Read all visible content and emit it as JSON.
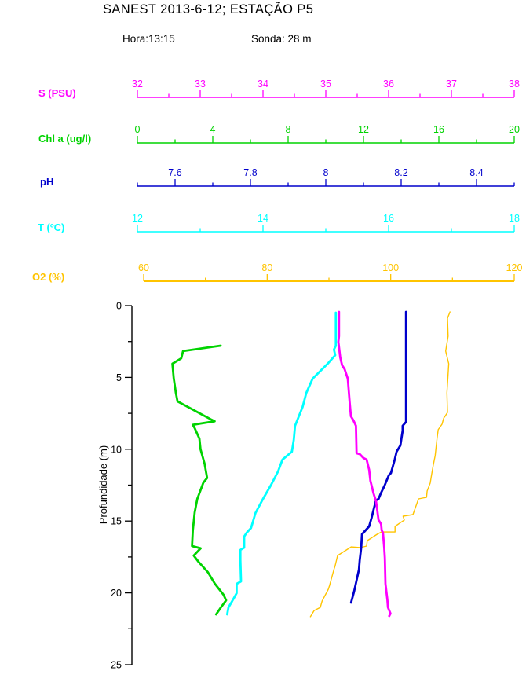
{
  "title": "SANEST 2013-6-12; ESTAÇÃO P5",
  "subtitle": {
    "hora": "Hora:13:15",
    "sonda": "Sonda: 28 m"
  },
  "colors": {
    "salinity": "#FF00FF",
    "chlorophyll": "#00D300",
    "ph": "#0000CC",
    "temperature": "#00FFFF",
    "oxygen": "#FFC400",
    "axis": "#000000"
  },
  "chart_data": {
    "type": "line",
    "title": "SANEST 2013-6-12; ESTAÇÃO P5",
    "subtitle_left": "Hora:13:15",
    "subtitle_right": "Sonda: 28 m",
    "orientation": "vertical-depth-profile",
    "grid": false,
    "legend": "none",
    "y_axis": {
      "label": "Profundidade (m)",
      "min": 0,
      "max": 25,
      "major_ticks": [
        0,
        5,
        10,
        15,
        20,
        25
      ],
      "minor_ticks": [
        2.5,
        7.5,
        12.5,
        17.5,
        22.5
      ]
    },
    "x_axes": [
      {
        "id": "s",
        "label": "S (PSU)",
        "color": "#FF00FF",
        "min": 32,
        "max": 38,
        "major_ticks": [
          32,
          33,
          34,
          35,
          36,
          37,
          38
        ],
        "tick_labels": [
          "32",
          "33",
          "34",
          "35",
          "36",
          "37",
          "38"
        ],
        "minor_ticks": [
          32.5,
          33.5,
          34.5,
          35.5,
          36.5,
          37.5
        ]
      },
      {
        "id": "chl",
        "label": "Chl a (ug/l)",
        "color": "#00D300",
        "min": 0,
        "max": 20,
        "major_ticks": [
          0,
          4,
          8,
          12,
          16,
          20
        ],
        "tick_labels": [
          "0",
          "4",
          "8",
          "12",
          "16",
          "20"
        ],
        "minor_ticks": [
          2,
          6,
          10,
          14,
          18
        ]
      },
      {
        "id": "ph",
        "label": "pH",
        "color": "#0000CC",
        "min": 7.5,
        "max": 8.5,
        "major_ticks": [
          7.6,
          7.8,
          8,
          8.2,
          8.4
        ],
        "tick_labels": [
          "7.6",
          "7.8",
          "8",
          "8.2",
          "8.4"
        ],
        "minor_ticks": [
          7.5,
          7.7,
          7.9,
          8.1,
          8.3,
          8.5
        ]
      },
      {
        "id": "t",
        "label": "T (ºC)",
        "color": "#00FFFF",
        "min": 12,
        "max": 18,
        "major_ticks": [
          12,
          14,
          16,
          18
        ],
        "tick_labels": [
          "12",
          "14",
          "16",
          "18"
        ],
        "minor_ticks": [
          13,
          15,
          17
        ]
      },
      {
        "id": "o2",
        "label": "O2 (%)",
        "color": "#FFC400",
        "min": 60,
        "max": 120,
        "major_ticks": [
          60,
          80,
          100,
          120
        ],
        "tick_labels": [
          "60",
          "80",
          "100",
          "120"
        ],
        "minor_ticks": [
          70,
          90,
          110
        ]
      }
    ],
    "point_format": [
      "value",
      "depth_m"
    ],
    "series": [
      {
        "id": "s",
        "name": "S (PSU)",
        "axis": "s",
        "color": "#FF00FF",
        "points": [
          [
            35.21,
            0.44
          ],
          [
            35.21,
            2.13
          ],
          [
            35.2,
            2.52
          ],
          [
            35.23,
            3.61
          ],
          [
            35.26,
            4.16
          ],
          [
            35.3,
            4.43
          ],
          [
            35.35,
            5.09
          ],
          [
            35.38,
            6.73
          ],
          [
            35.4,
            7.71
          ],
          [
            35.44,
            7.99
          ],
          [
            35.48,
            8.37
          ],
          [
            35.49,
            10.28
          ],
          [
            35.54,
            10.34
          ],
          [
            35.6,
            10.61
          ],
          [
            35.65,
            10.72
          ],
          [
            35.69,
            11.43
          ],
          [
            35.71,
            12.2
          ],
          [
            35.76,
            13.07
          ],
          [
            35.8,
            13.62
          ],
          [
            35.84,
            14.93
          ],
          [
            35.88,
            15.21
          ],
          [
            35.89,
            15.65
          ],
          [
            35.91,
            15.81
          ],
          [
            35.93,
            16.85
          ],
          [
            35.94,
            17.56
          ],
          [
            35.95,
            19.37
          ],
          [
            35.98,
            20.46
          ],
          [
            35.99,
            21.01
          ],
          [
            36.03,
            21.44
          ],
          [
            36.01,
            21.61
          ]
        ]
      },
      {
        "id": "chl",
        "name": "Chl a (ug/l)",
        "axis": "chl",
        "color": "#00D300",
        "points": [
          [
            4.42,
            2.79
          ],
          [
            2.42,
            3.17
          ],
          [
            2.33,
            3.67
          ],
          [
            1.86,
            4.05
          ],
          [
            1.93,
            5.07
          ],
          [
            2.04,
            6.07
          ],
          [
            2.13,
            6.67
          ],
          [
            3.94,
            7.95
          ],
          [
            4.1,
            8.05
          ],
          [
            2.94,
            8.3
          ],
          [
            3.04,
            8.53
          ],
          [
            3.29,
            9.26
          ],
          [
            3.35,
            10.0
          ],
          [
            3.57,
            11.03
          ],
          [
            3.7,
            12.0
          ],
          [
            3.5,
            12.33
          ],
          [
            3.18,
            13.46
          ],
          [
            3.04,
            14.4
          ],
          [
            2.94,
            15.65
          ],
          [
            2.9,
            16.74
          ],
          [
            3.36,
            16.9
          ],
          [
            2.99,
            17.4
          ],
          [
            3.22,
            17.8
          ],
          [
            3.74,
            18.56
          ],
          [
            4.12,
            19.38
          ],
          [
            4.57,
            20.13
          ],
          [
            4.71,
            20.52
          ],
          [
            4.43,
            21.02
          ],
          [
            4.18,
            21.5
          ]
        ]
      },
      {
        "id": "ph",
        "name": "pH",
        "axis": "ph",
        "color": "#0000CC",
        "points": [
          [
            8.213,
            0.44
          ],
          [
            8.213,
            8.1
          ],
          [
            8.204,
            8.37
          ],
          [
            8.204,
            8.7
          ],
          [
            8.198,
            9.74
          ],
          [
            8.188,
            10.17
          ],
          [
            8.183,
            10.72
          ],
          [
            8.173,
            11.65
          ],
          [
            8.167,
            11.82
          ],
          [
            8.156,
            12.53
          ],
          [
            8.146,
            13.07
          ],
          [
            8.14,
            13.46
          ],
          [
            8.133,
            13.57
          ],
          [
            8.121,
            14.82
          ],
          [
            8.115,
            15.37
          ],
          [
            8.096,
            15.92
          ],
          [
            8.094,
            16.85
          ],
          [
            8.09,
            17.72
          ],
          [
            8.088,
            18.38
          ],
          [
            8.081,
            19.2
          ],
          [
            8.075,
            19.91
          ],
          [
            8.067,
            20.68
          ]
        ]
      },
      {
        "id": "t",
        "name": "T (ºC)",
        "axis": "t",
        "color": "#00FFFF",
        "points": [
          [
            15.16,
            0.49
          ],
          [
            15.16,
            2.79
          ],
          [
            15.13,
            3.06
          ],
          [
            15.15,
            3.45
          ],
          [
            15.04,
            4.0
          ],
          [
            14.79,
            5.09
          ],
          [
            14.69,
            6.07
          ],
          [
            14.63,
            7.06
          ],
          [
            14.51,
            8.37
          ],
          [
            14.49,
            9.35
          ],
          [
            14.46,
            10.17
          ],
          [
            14.31,
            10.72
          ],
          [
            14.24,
            11.54
          ],
          [
            14.13,
            12.47
          ],
          [
            14.0,
            13.46
          ],
          [
            13.88,
            14.44
          ],
          [
            13.81,
            15.48
          ],
          [
            13.74,
            15.81
          ],
          [
            13.7,
            16.08
          ],
          [
            13.7,
            16.85
          ],
          [
            13.64,
            17.01
          ],
          [
            13.64,
            17.72
          ],
          [
            13.65,
            19.2
          ],
          [
            13.58,
            19.37
          ],
          [
            13.58,
            20.02
          ],
          [
            13.51,
            20.57
          ],
          [
            13.45,
            21.01
          ],
          [
            13.43,
            21.5
          ]
        ]
      },
      {
        "id": "o2",
        "name": "O2 (%)",
        "axis": "o2",
        "color": "#FFC400",
        "points": [
          [
            109.6,
            0.44
          ],
          [
            109.2,
            0.88
          ],
          [
            109.3,
            2.13
          ],
          [
            108.9,
            3.17
          ],
          [
            109.4,
            4.05
          ],
          [
            109.1,
            6.07
          ],
          [
            109.2,
            7.44
          ],
          [
            108.8,
            7.71
          ],
          [
            108.6,
            7.82
          ],
          [
            108.3,
            8.26
          ],
          [
            107.7,
            8.64
          ],
          [
            107.5,
            9.25
          ],
          [
            107.2,
            10.45
          ],
          [
            106.9,
            11.1
          ],
          [
            106.6,
            11.82
          ],
          [
            106.4,
            12.36
          ],
          [
            105.9,
            12.91
          ],
          [
            105.8,
            13.35
          ],
          [
            104.5,
            13.46
          ],
          [
            103.6,
            14.55
          ],
          [
            102.0,
            14.66
          ],
          [
            102.2,
            14.93
          ],
          [
            100.7,
            15.37
          ],
          [
            100.7,
            15.76
          ],
          [
            98.5,
            15.76
          ],
          [
            97.8,
            15.92
          ],
          [
            96.2,
            16.36
          ],
          [
            96.1,
            16.74
          ],
          [
            95.1,
            16.85
          ],
          [
            93.6,
            16.8
          ],
          [
            91.4,
            17.4
          ],
          [
            91.0,
            18.11
          ],
          [
            90.8,
            18.38
          ],
          [
            90.1,
            19.48
          ],
          [
            89.9,
            19.75
          ],
          [
            88.9,
            20.57
          ],
          [
            88.6,
            21.01
          ],
          [
            87.6,
            21.23
          ],
          [
            87.0,
            21.66
          ]
        ]
      }
    ]
  }
}
